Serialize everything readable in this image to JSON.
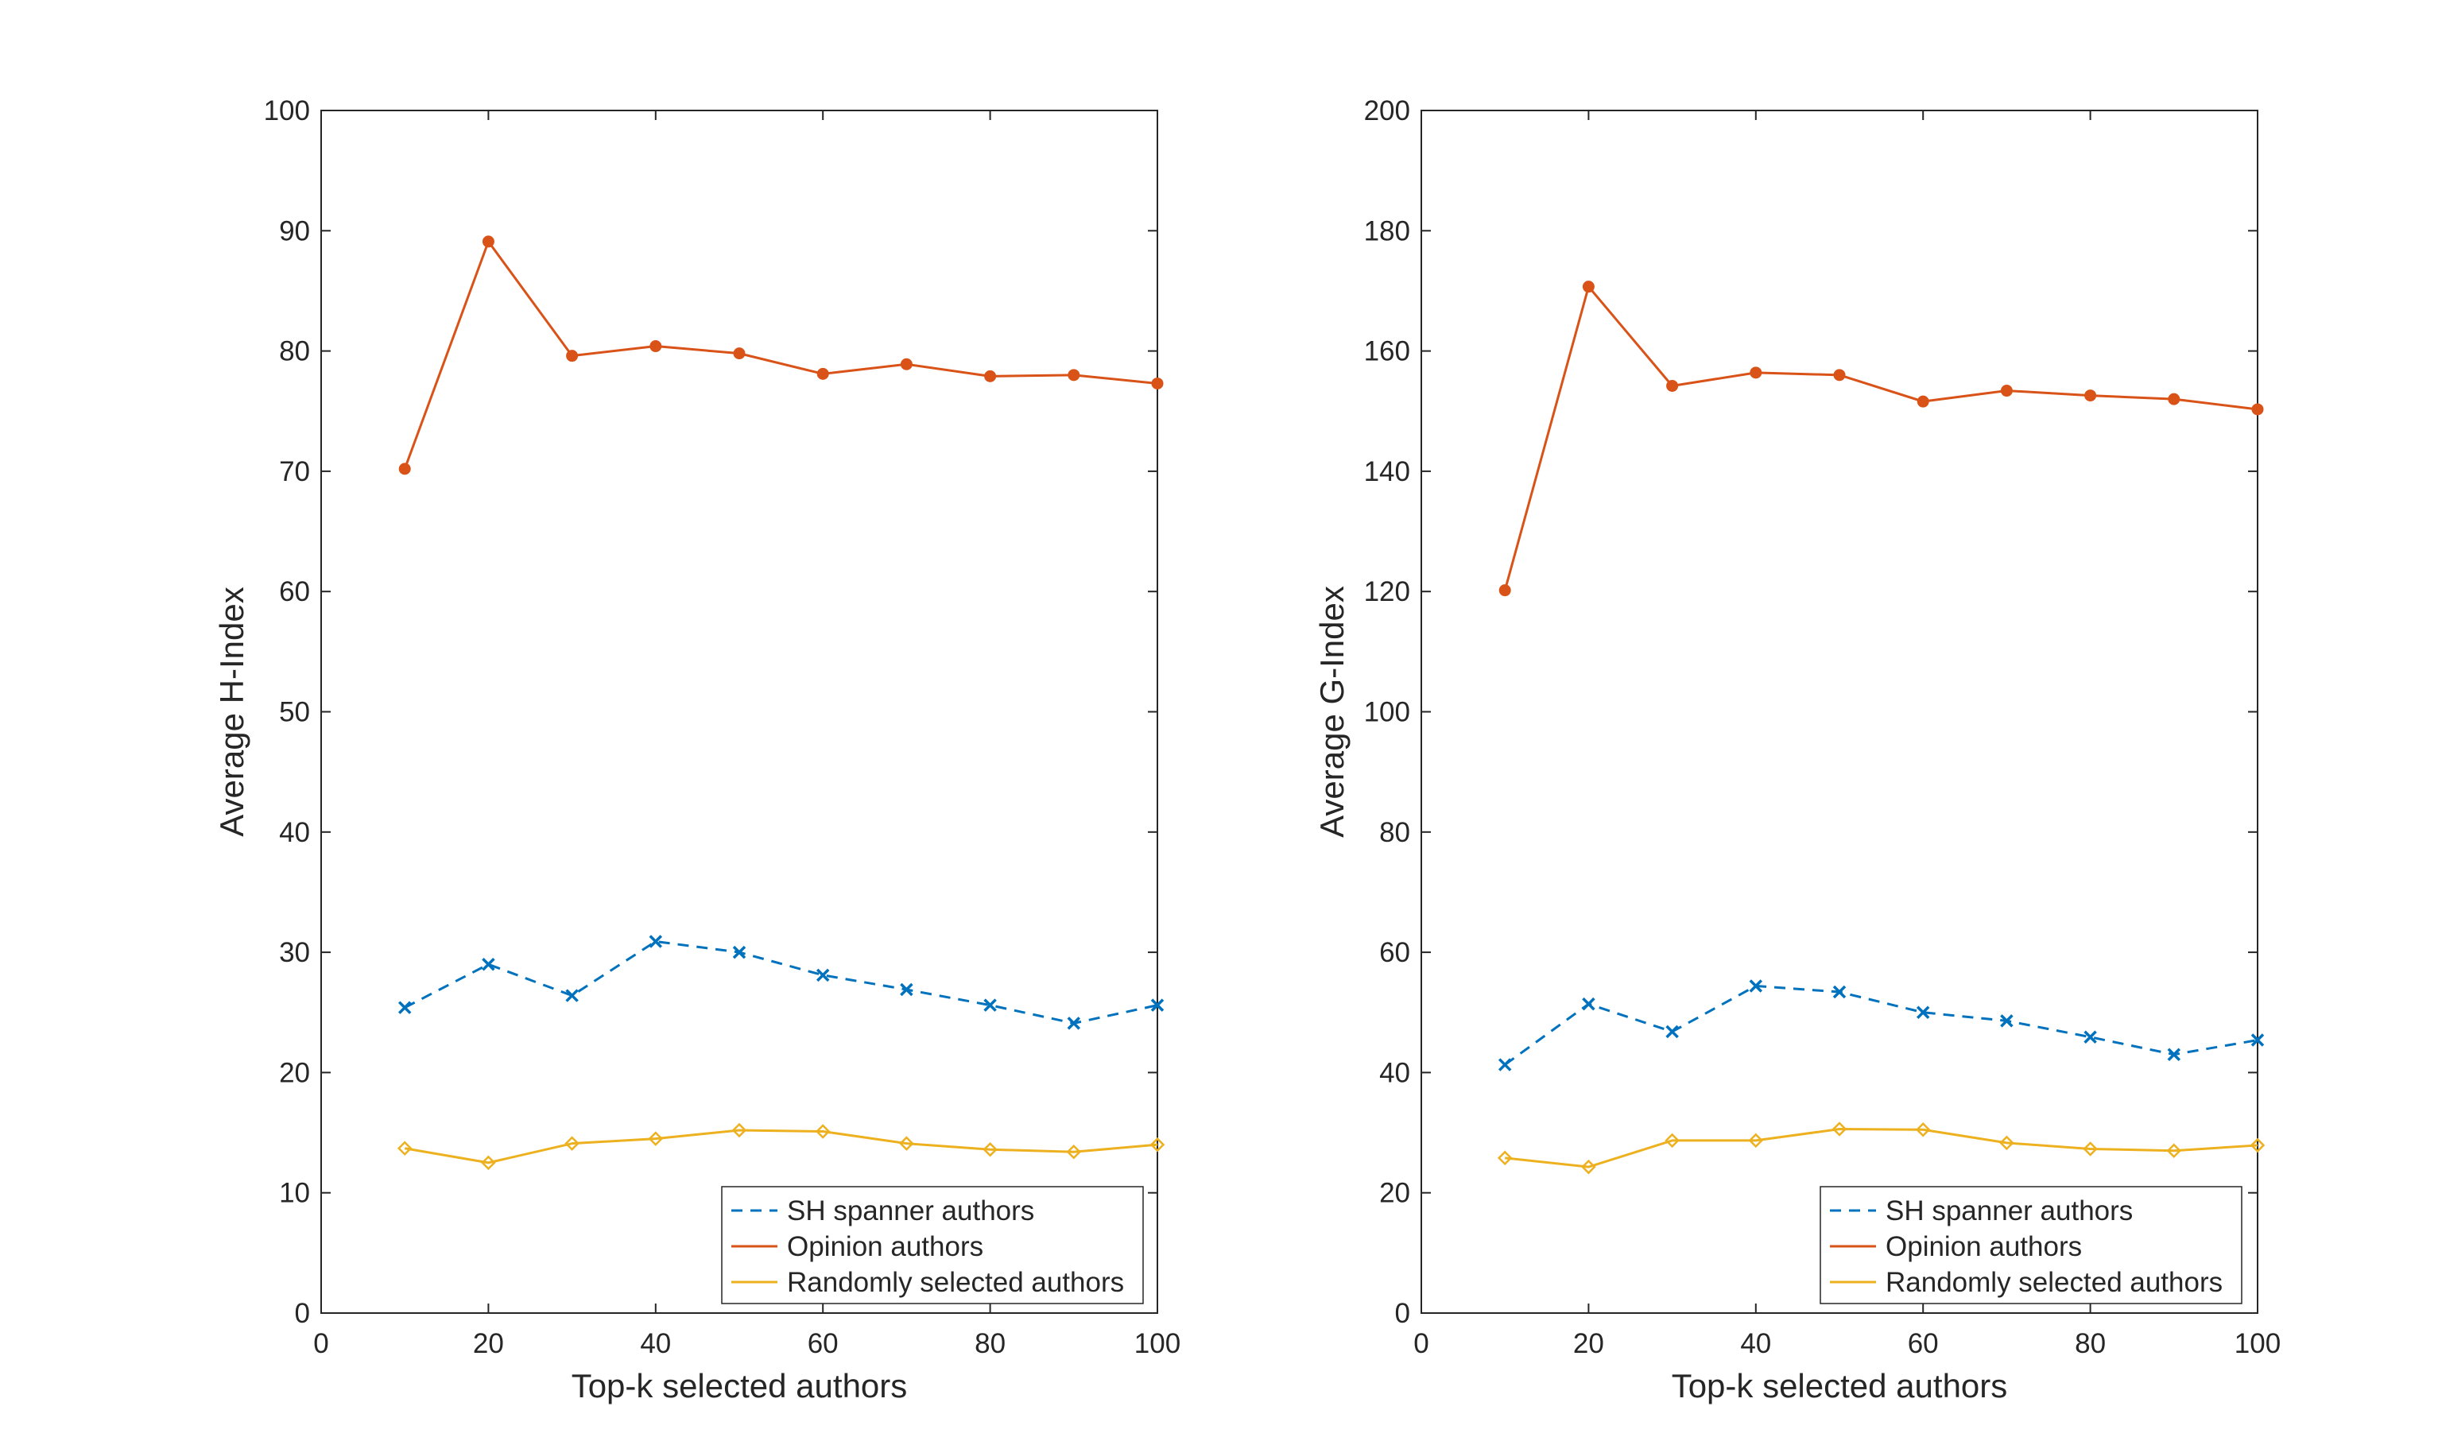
{
  "colors": {
    "series": [
      "#0072BD",
      "#D95319",
      "#EDB120"
    ],
    "axis": "#262626",
    "background": "#ffffff"
  },
  "chart_data": [
    {
      "type": "line",
      "xlabel": "Top-k selected authors",
      "ylabel": "Average H-Index",
      "xlim": [
        0,
        100
      ],
      "ylim": [
        0,
        100
      ],
      "xticks": [
        "0",
        "20",
        "40",
        "60",
        "80",
        "100"
      ],
      "yticks": [
        "0",
        "10",
        "20",
        "30",
        "40",
        "50",
        "60",
        "70",
        "80",
        "90",
        "100"
      ],
      "grid": false,
      "legend_position": "bottom-right",
      "x": [
        10,
        20,
        30,
        40,
        50,
        60,
        70,
        80,
        90,
        100
      ],
      "series": [
        {
          "name": "SH spanner authors",
          "line_style": "dashed",
          "marker": "x",
          "values": [
            25.4,
            29.0,
            26.4,
            30.9,
            30.0,
            28.1,
            26.9,
            25.6,
            24.1,
            25.6
          ]
        },
        {
          "name": "Opinion authors",
          "line_style": "solid",
          "marker": "dot",
          "values": [
            70.2,
            89.1,
            79.6,
            80.4,
            79.8,
            78.1,
            78.9,
            77.9,
            78.0,
            77.3
          ]
        },
        {
          "name": "Randomly selected authors",
          "line_style": "solid",
          "marker": "diamond",
          "values": [
            13.7,
            12.5,
            14.1,
            14.5,
            15.2,
            15.1,
            14.1,
            13.6,
            13.4,
            14.0
          ]
        }
      ]
    },
    {
      "type": "line",
      "xlabel": "Top-k selected authors",
      "ylabel": "Average G-Index",
      "xlim": [
        0,
        100
      ],
      "ylim": [
        0,
        200
      ],
      "xticks": [
        "0",
        "20",
        "40",
        "60",
        "80",
        "100"
      ],
      "yticks": [
        "0",
        "20",
        "40",
        "60",
        "80",
        "100",
        "120",
        "140",
        "160",
        "180",
        "200"
      ],
      "grid": false,
      "legend_position": "bottom-right",
      "x": [
        10,
        20,
        30,
        40,
        50,
        60,
        70,
        80,
        90,
        100
      ],
      "series": [
        {
          "name": "SH spanner authors",
          "line_style": "dashed",
          "marker": "x",
          "values": [
            41.3,
            51.4,
            46.8,
            54.4,
            53.4,
            50.0,
            48.6,
            45.9,
            43.0,
            45.4
          ]
        },
        {
          "name": "Opinion authors",
          "line_style": "solid",
          "marker": "dot",
          "values": [
            120.2,
            170.7,
            154.2,
            156.4,
            156.0,
            151.6,
            153.4,
            152.6,
            152.0,
            150.3
          ]
        },
        {
          "name": "Randomly selected authors",
          "line_style": "solid",
          "marker": "diamond",
          "values": [
            25.8,
            24.3,
            28.7,
            28.7,
            30.6,
            30.5,
            28.3,
            27.3,
            27.0,
            27.9
          ]
        }
      ]
    }
  ]
}
